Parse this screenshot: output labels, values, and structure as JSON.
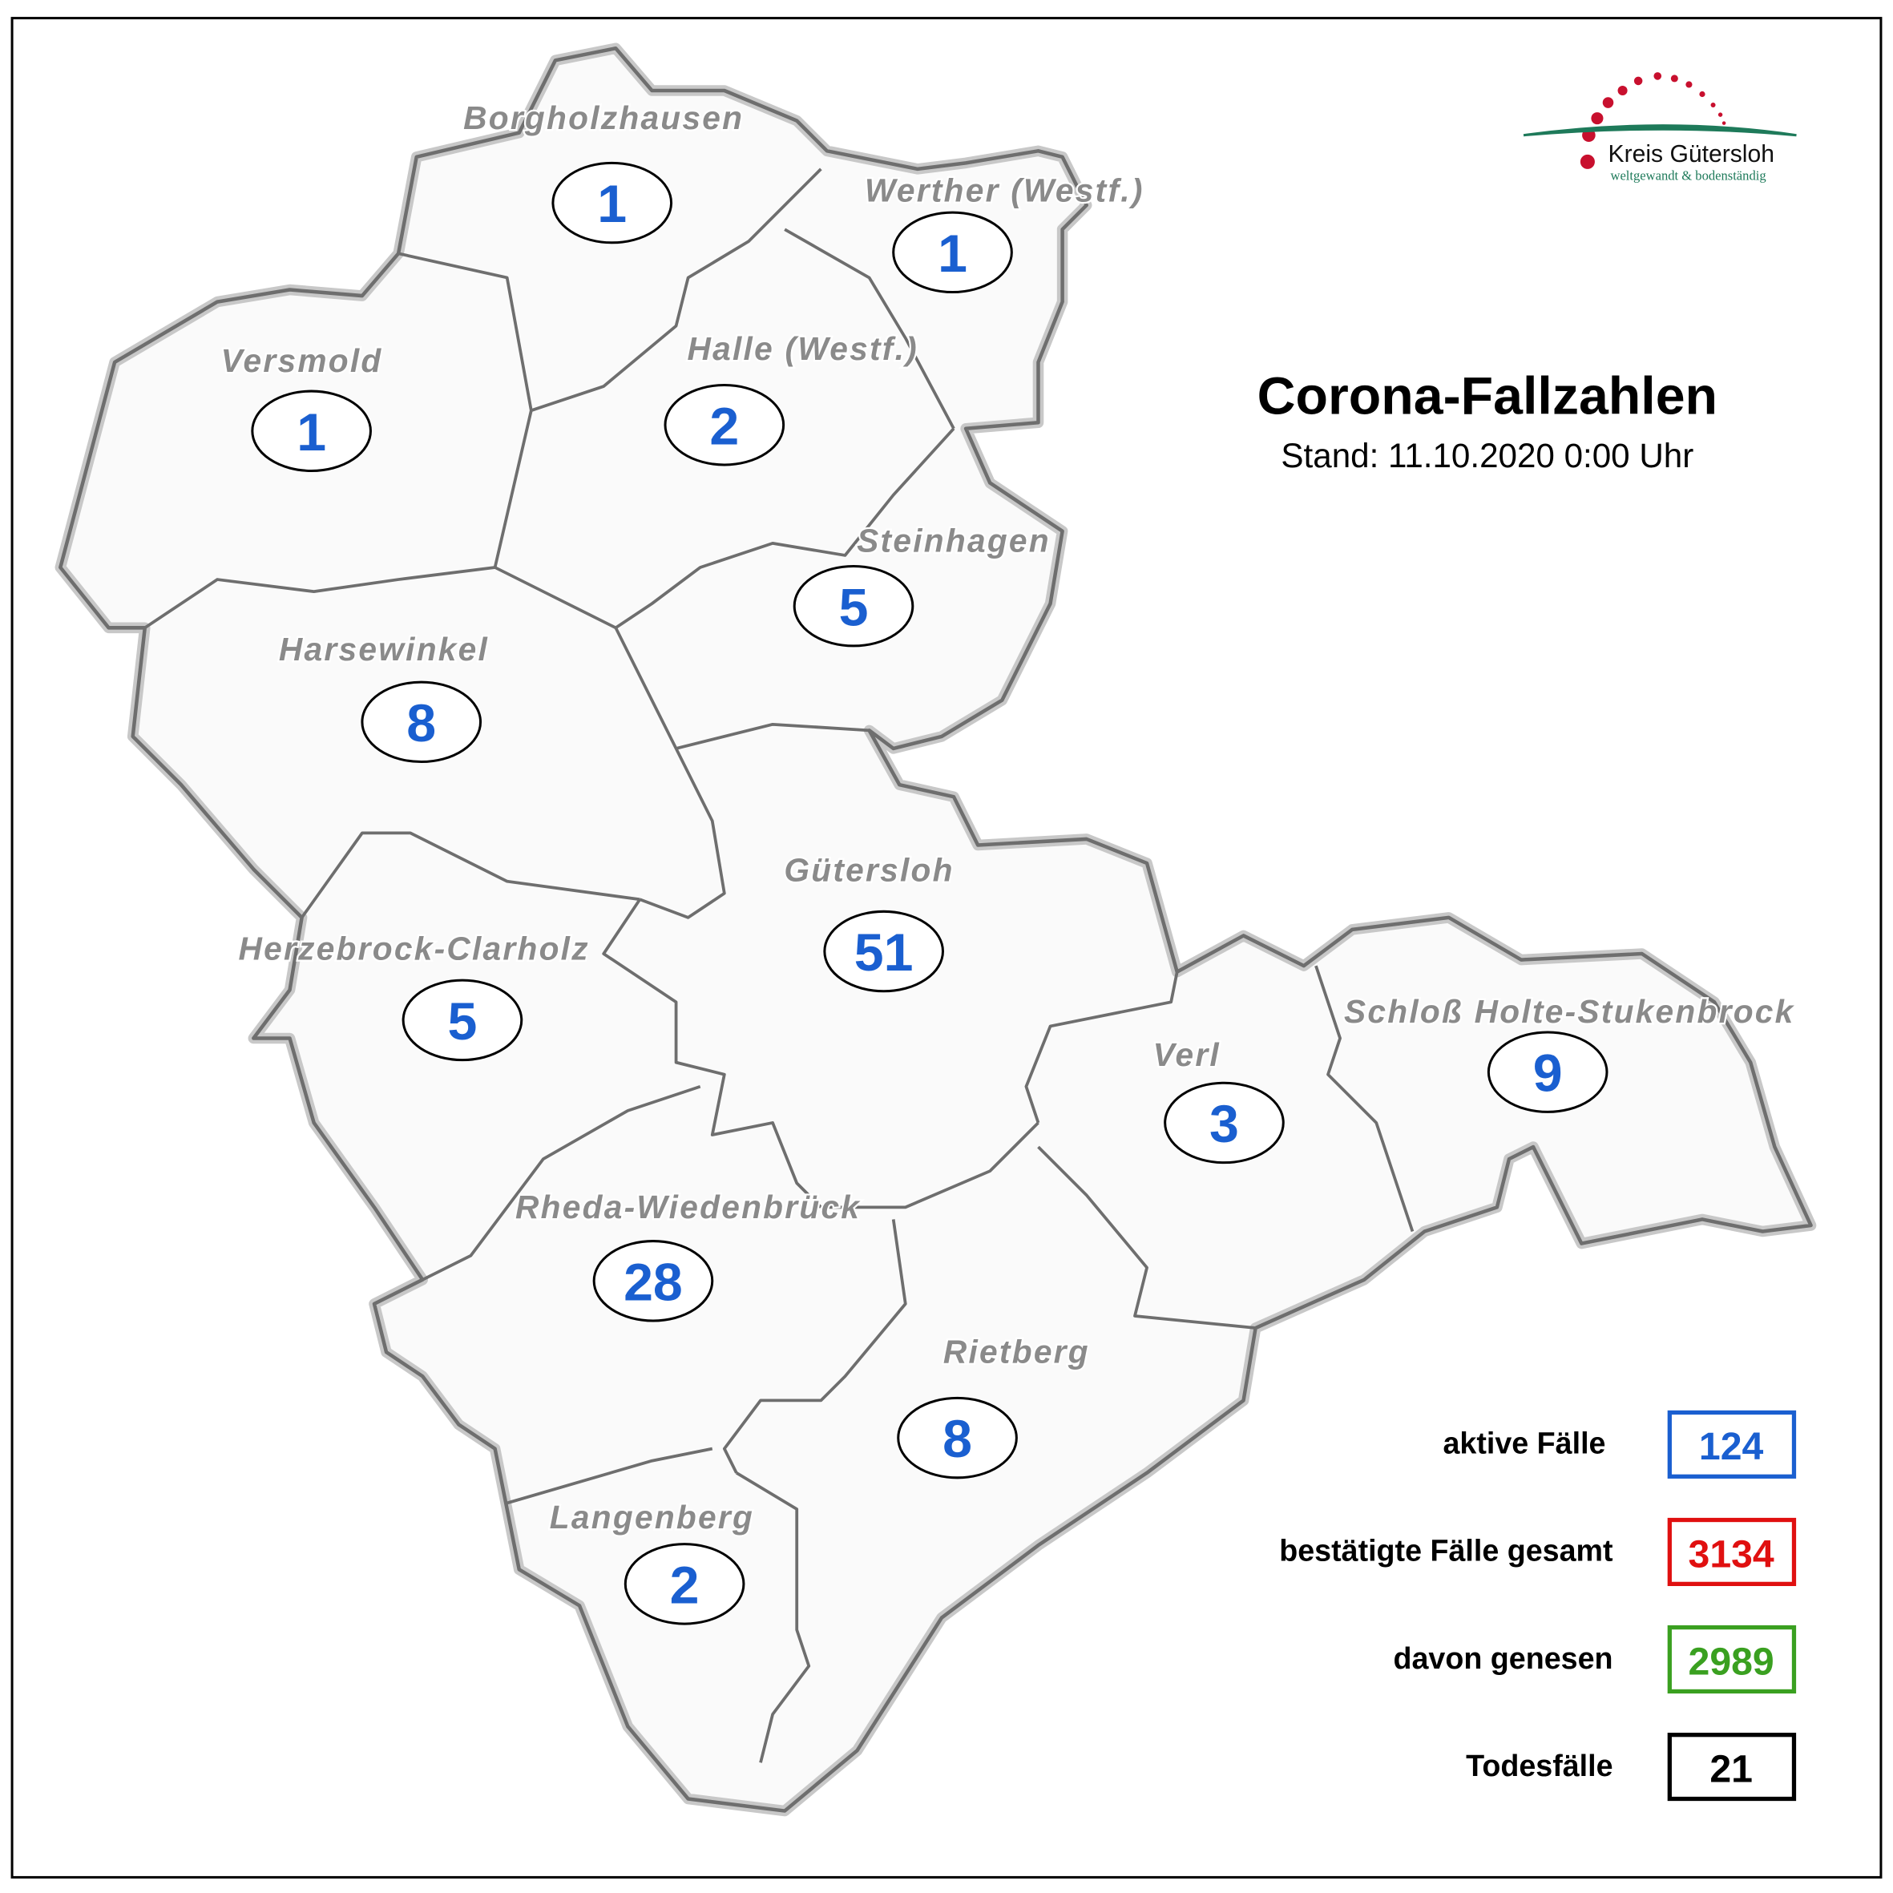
{
  "title": "Corona-Fallzahlen",
  "subtitle": "Stand: 11.10.2020 0:00 Uhr",
  "logo": {
    "name": "Kreis Gütersloh",
    "slogan": "weltgewandt & bodenständig",
    "colors": {
      "dots": "#c8102e",
      "arc": "#1e7a5a"
    }
  },
  "count_color": "#1a5fd0",
  "regions": [
    {
      "name": "Borgholzhausen",
      "active": "1"
    },
    {
      "name": "Werther (Westf.)",
      "active": "1"
    },
    {
      "name": "Versmold",
      "active": "1"
    },
    {
      "name": "Halle (Westf.)",
      "active": "2"
    },
    {
      "name": "Steinhagen",
      "active": "5"
    },
    {
      "name": "Harsewinkel",
      "active": "8"
    },
    {
      "name": "Gütersloh",
      "active": "51"
    },
    {
      "name": "Herzebrock-Clarholz",
      "active": "5"
    },
    {
      "name": "Verl",
      "active": "3"
    },
    {
      "name": "Schloß Holte-Stukenbrock",
      "active": "9"
    },
    {
      "name": "Rheda-Wiedenbrück",
      "active": "28"
    },
    {
      "name": "Rietberg",
      "active": "8"
    },
    {
      "name": "Langenberg",
      "active": "2"
    }
  ],
  "legend": [
    {
      "label": "aktive Fälle",
      "value": "124",
      "color": "#1a5fd0"
    },
    {
      "label": "bestätigte Fälle gesamt",
      "value": "3134",
      "color": "#e01010"
    },
    {
      "label": "davon genesen",
      "value": "2989",
      "color": "#3aa020"
    },
    {
      "label": "Todesfälle",
      "value": "21",
      "color": "#000000"
    }
  ]
}
